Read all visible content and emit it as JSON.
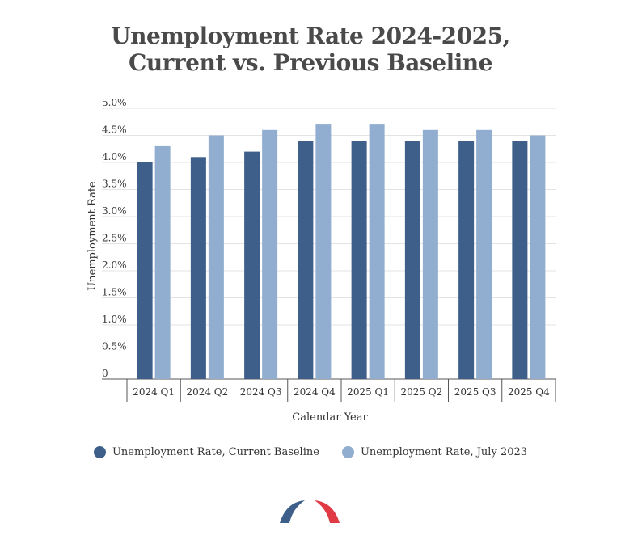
{
  "chart_data": {
    "type": "bar",
    "title_line1": "Unemployment Rate 2024-2025,",
    "title_line2": "Current vs. Previous Baseline",
    "xlabel": "Calendar Year",
    "ylabel": "Unemployment Rate",
    "categories": [
      "2024 Q1",
      "2024 Q2",
      "2024 Q3",
      "2024 Q4",
      "2025 Q1",
      "2025 Q2",
      "2025 Q3",
      "2025 Q4"
    ],
    "series": [
      {
        "name": "Unemployment Rate, Current Baseline",
        "color": "#3d5f8a",
        "values": [
          4.0,
          4.1,
          4.2,
          4.4,
          4.4,
          4.4,
          4.4,
          4.4
        ]
      },
      {
        "name": "Unemployment Rate, July 2023",
        "color": "#91aed0",
        "values": [
          4.3,
          4.5,
          4.6,
          4.7,
          4.7,
          4.6,
          4.6,
          4.5
        ]
      }
    ],
    "y_ticks": [
      "0",
      "0.5%",
      "1.0%",
      "1.5%",
      "2.0%",
      "2.5%",
      "3.0%",
      "3.5%",
      "4.0%",
      "4.5%",
      "5.0%"
    ],
    "ylim": [
      0,
      5.0
    ],
    "grid": true,
    "legend_position": "bottom"
  },
  "logo": {
    "left_color": "#3d5f8a",
    "right_color": "#e03a45"
  }
}
